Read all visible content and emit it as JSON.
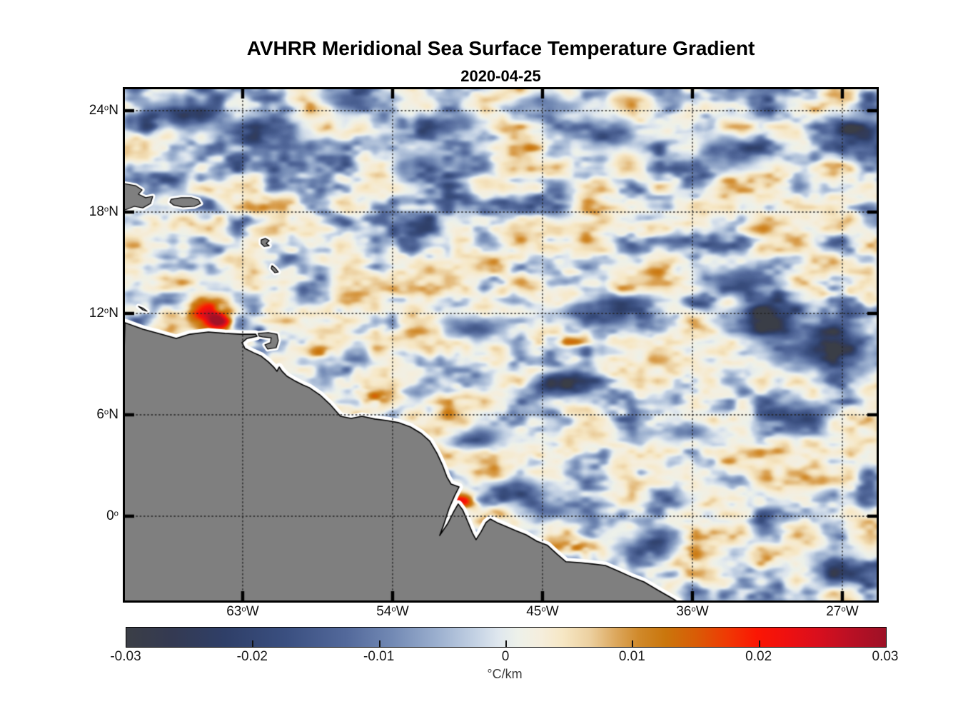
{
  "figure": {
    "title": "AVHRR Meridional Sea Surface Temperature Gradient",
    "subtitle": "2020-04-25"
  },
  "chart_data": {
    "type": "heatmap",
    "title": "AVHRR Meridional Sea Surface Temperature Gradient",
    "subtitle": "2020-04-25",
    "projection": {
      "lon_range": [
        -70.07,
        -24.94
      ],
      "lat_range": [
        -4.99,
        25.27
      ]
    },
    "x_axis": {
      "ticks": [
        {
          "lon": -63,
          "label": "63°W"
        },
        {
          "lon": -54,
          "label": "54°W"
        },
        {
          "lon": -45,
          "label": "45°W"
        },
        {
          "lon": -36,
          "label": "36°W"
        },
        {
          "lon": -27,
          "label": "27°W"
        }
      ]
    },
    "y_axis": {
      "ticks": [
        {
          "lat": 24,
          "label": "24°N"
        },
        {
          "lat": 18,
          "label": "18°N"
        },
        {
          "lat": 12,
          "label": "12°N"
        },
        {
          "lat": 6,
          "label": "6°N"
        },
        {
          "lat": 0,
          "label": "0°"
        }
      ]
    },
    "colorbar": {
      "min": -0.03,
      "max": 0.03,
      "tick_values": [
        -0.03,
        -0.02,
        -0.01,
        0,
        0.01,
        0.02,
        0.03
      ],
      "tick_labels": [
        "-0.03",
        "-0.02",
        "-0.01",
        "0",
        "0.01",
        "0.02",
        "0.03"
      ],
      "unit": "°C/km",
      "stops": [
        [
          0.0,
          "#3b3e46"
        ],
        [
          0.06,
          "#343a52"
        ],
        [
          0.13,
          "#2f3f68"
        ],
        [
          0.21,
          "#3a4f80"
        ],
        [
          0.29,
          "#53699b"
        ],
        [
          0.35,
          "#7289b4"
        ],
        [
          0.41,
          "#9cb0cf"
        ],
        [
          0.46,
          "#c4d2e4"
        ],
        [
          0.49,
          "#dfe7ee"
        ],
        [
          0.515,
          "#edf1ea"
        ],
        [
          0.545,
          "#f5eedd"
        ],
        [
          0.575,
          "#f6e7c4"
        ],
        [
          0.61,
          "#ecd0a0"
        ],
        [
          0.645,
          "#dca75c"
        ],
        [
          0.675,
          "#d0892a"
        ],
        [
          0.71,
          "#ca760c"
        ],
        [
          0.75,
          "#d95c06"
        ],
        [
          0.79,
          "#ef3a04"
        ],
        [
          0.83,
          "#fb1603"
        ],
        [
          0.87,
          "#ee1010"
        ],
        [
          0.91,
          "#d90f1d"
        ],
        [
          0.95,
          "#bc1024"
        ],
        [
          1.0,
          "#9d1126"
        ]
      ]
    },
    "grid_style": "dotted",
    "land_color": "#7f7f7f",
    "coast_outline_color": "#000000",
    "coastal_mask_color": "#ffffff",
    "field_background": 0.0017,
    "anomalies": [
      {
        "lon": -65.1,
        "lat": 12.15,
        "peak": 0.02,
        "sx": 1.1,
        "sy": 0.45
      },
      {
        "lon": -64.35,
        "lat": 11.45,
        "peak": 0.027,
        "sx": 0.55,
        "sy": 0.35
      },
      {
        "lon": -62.0,
        "lat": 10.72,
        "peak": -0.026,
        "sx": 0.24,
        "sy": 0.3
      },
      {
        "lon": -43.7,
        "lat": 10.35,
        "peak": 0.017,
        "sx": 1.2,
        "sy": 0.4
      },
      {
        "lon": -55.15,
        "lat": 7.1,
        "peak": 0.013,
        "sx": 0.8,
        "sy": 0.35
      },
      {
        "lon": -58.3,
        "lat": 9.7,
        "peak": 0.012,
        "sx": 0.5,
        "sy": 0.3
      },
      {
        "lon": -49.9,
        "lat": 0.9,
        "peak": 0.014,
        "sx": 0.7,
        "sy": 0.3
      },
      {
        "lon": -43.4,
        "lat": -1.85,
        "peak": 0.013,
        "sx": 1.0,
        "sy": 0.3
      },
      {
        "lon": -27.5,
        "lat": 13.0,
        "peak": 0.014,
        "sx": 0.7,
        "sy": 0.4
      },
      {
        "lon": -66.8,
        "lat": 23.6,
        "peak": -0.02,
        "sx": 1.3,
        "sy": 0.6
      },
      {
        "lon": -61.9,
        "lat": 22.9,
        "peak": -0.02,
        "sx": 1.8,
        "sy": 0.7
      },
      {
        "lon": -56.5,
        "lat": 24.6,
        "peak": -0.018,
        "sx": 1.2,
        "sy": 0.5
      },
      {
        "lon": -52.5,
        "lat": 20.8,
        "peak": -0.014,
        "sx": 1.4,
        "sy": 0.8
      },
      {
        "lon": -50.8,
        "lat": 23.2,
        "peak": -0.018,
        "sx": 1.5,
        "sy": 0.6
      },
      {
        "lon": -44.6,
        "lat": 24.3,
        "peak": -0.016,
        "sx": 1.3,
        "sy": 0.5
      },
      {
        "lon": -40.8,
        "lat": 22.6,
        "peak": -0.016,
        "sx": 1.5,
        "sy": 0.7
      },
      {
        "lon": -33.8,
        "lat": 21.5,
        "peak": -0.016,
        "sx": 1.6,
        "sy": 0.8
      },
      {
        "lon": -25.8,
        "lat": 22.5,
        "peak": -0.02,
        "sx": 1.4,
        "sy": 1.0
      },
      {
        "lon": -52.3,
        "lat": 17.2,
        "peak": -0.015,
        "sx": 1.0,
        "sy": 0.5
      },
      {
        "lon": -49.2,
        "lat": 11.2,
        "peak": -0.02,
        "sx": 1.3,
        "sy": 0.55
      },
      {
        "lon": -41.3,
        "lat": 11.9,
        "peak": -0.018,
        "sx": 1.8,
        "sy": 0.6
      },
      {
        "lon": -44.0,
        "lat": 7.6,
        "peak": -0.018,
        "sx": 1.6,
        "sy": 0.6
      },
      {
        "lon": -48.8,
        "lat": 4.6,
        "peak": -0.017,
        "sx": 1.2,
        "sy": 0.5
      },
      {
        "lon": -46.3,
        "lat": 1.5,
        "peak": -0.015,
        "sx": 1.4,
        "sy": 0.5
      },
      {
        "lon": -44.5,
        "lat": 0.3,
        "peak": -0.014,
        "sx": 1.2,
        "sy": 0.45
      },
      {
        "lon": -38.5,
        "lat": -1.6,
        "peak": -0.016,
        "sx": 1.4,
        "sy": 0.5
      },
      {
        "lon": -31.5,
        "lat": 11.6,
        "peak": -0.02,
        "sx": 1.5,
        "sy": 0.8
      },
      {
        "lon": -28.0,
        "lat": 9.8,
        "peak": -0.023,
        "sx": 2.2,
        "sy": 1.1
      },
      {
        "lon": -33.2,
        "lat": 13.9,
        "peak": -0.018,
        "sx": 1.6,
        "sy": 0.7
      },
      {
        "lon": -29.3,
        "lat": 5.9,
        "peak": -0.02,
        "sx": 1.5,
        "sy": 0.7
      },
      {
        "lon": -36.0,
        "lat": 5.0,
        "peak": -0.017,
        "sx": 1.1,
        "sy": 0.5
      },
      {
        "lon": -27.5,
        "lat": -3.2,
        "peak": -0.014,
        "sx": 1.6,
        "sy": 0.7
      }
    ],
    "geography": {
      "mainland": [
        [
          -70.07,
          11.45
        ],
        [
          -69.0,
          11.07
        ],
        [
          -68.06,
          10.82
        ],
        [
          -66.99,
          10.52
        ],
        [
          -66.17,
          10.77
        ],
        [
          -65.06,
          10.9
        ],
        [
          -64.07,
          10.82
        ],
        [
          -63.09,
          10.77
        ],
        [
          -62.23,
          10.77
        ],
        [
          -62.14,
          10.65
        ],
        [
          -62.74,
          10.52
        ],
        [
          -63.04,
          10.27
        ],
        [
          -62.87,
          9.93
        ],
        [
          -62.36,
          9.68
        ],
        [
          -61.89,
          9.47
        ],
        [
          -61.46,
          9.13
        ],
        [
          -61.11,
          8.79
        ],
        [
          -60.94,
          8.58
        ],
        [
          -60.81,
          8.83
        ],
        [
          -60.64,
          8.58
        ],
        [
          -60.34,
          8.28
        ],
        [
          -59.91,
          8.03
        ],
        [
          -59.4,
          7.77
        ],
        [
          -59.01,
          7.61
        ],
        [
          -58.37,
          7.18
        ],
        [
          -57.77,
          6.63
        ],
        [
          -57.13,
          5.91
        ],
        [
          -56.49,
          5.79
        ],
        [
          -55.84,
          5.91
        ],
        [
          -55.07,
          5.75
        ],
        [
          -54.34,
          5.66
        ],
        [
          -53.66,
          5.54
        ],
        [
          -52.93,
          5.28
        ],
        [
          -52.29,
          4.9
        ],
        [
          -51.77,
          4.44
        ],
        [
          -51.34,
          3.72
        ],
        [
          -51.0,
          3.0
        ],
        [
          -50.74,
          2.32
        ],
        [
          -50.49,
          1.9
        ],
        [
          -50.01,
          1.73
        ],
        [
          -50.27,
          1.23
        ],
        [
          -50.61,
          0.46
        ],
        [
          -50.96,
          -0.59
        ],
        [
          -51.17,
          -1.14
        ],
        [
          -50.7,
          -0.46
        ],
        [
          -50.31,
          0.3
        ],
        [
          -50.06,
          0.72
        ],
        [
          -49.8,
          0.38
        ],
        [
          -49.5,
          -0.3
        ],
        [
          -49.2,
          -1.01
        ],
        [
          -48.99,
          -1.39
        ],
        [
          -48.69,
          -0.93
        ],
        [
          -48.39,
          -0.38
        ],
        [
          -48.13,
          -0.17
        ],
        [
          -47.74,
          -0.38
        ],
        [
          -47.23,
          -0.59
        ],
        [
          -46.63,
          -0.85
        ],
        [
          -45.99,
          -1.1
        ],
        [
          -45.34,
          -1.48
        ],
        [
          -44.7,
          -1.73
        ],
        [
          -44.14,
          -2.24
        ],
        [
          -43.59,
          -2.7
        ],
        [
          -42.77,
          -2.75
        ],
        [
          -42.0,
          -2.83
        ],
        [
          -41.23,
          -2.92
        ],
        [
          -40.46,
          -3.25
        ],
        [
          -39.69,
          -3.59
        ],
        [
          -38.91,
          -3.89
        ],
        [
          -38.06,
          -4.39
        ],
        [
          -37.29,
          -4.82
        ],
        [
          -36.86,
          -5.07
        ],
        [
          -36.5,
          -5.6
        ],
        [
          -70.5,
          -5.6
        ]
      ],
      "islands": {
        "hispaniola": [
          [
            -70.4,
            19.73
          ],
          [
            -69.43,
            19.56
          ],
          [
            -69.04,
            19.31
          ],
          [
            -69.26,
            19.06
          ],
          [
            -68.83,
            18.85
          ],
          [
            -68.4,
            18.93
          ],
          [
            -68.53,
            18.51
          ],
          [
            -69.0,
            18.25
          ],
          [
            -69.51,
            18.34
          ],
          [
            -69.94,
            18.17
          ],
          [
            -70.4,
            18.04
          ]
        ],
        "puerto_rico": [
          [
            -67.29,
            18.76
          ],
          [
            -66.69,
            18.85
          ],
          [
            -66.09,
            18.85
          ],
          [
            -65.66,
            18.72
          ],
          [
            -65.53,
            18.51
          ],
          [
            -65.91,
            18.34
          ],
          [
            -66.6,
            18.3
          ],
          [
            -67.16,
            18.42
          ],
          [
            -67.37,
            18.59
          ]
        ],
        "curacao": [
          [
            -69.26,
            12.42
          ],
          [
            -68.96,
            12.3
          ],
          [
            -68.74,
            12.13
          ],
          [
            -69.0,
            12.21
          ]
        ],
        "guadeloupe": [
          [
            -61.89,
            16.35
          ],
          [
            -61.63,
            16.44
          ],
          [
            -61.41,
            16.31
          ],
          [
            -61.59,
            16.14
          ],
          [
            -61.41,
            16.01
          ],
          [
            -61.71,
            15.97
          ],
          [
            -61.89,
            16.14
          ]
        ],
        "martinique": [
          [
            -61.24,
            14.83
          ],
          [
            -61.03,
            14.66
          ],
          [
            -60.86,
            14.45
          ],
          [
            -61.07,
            14.41
          ],
          [
            -61.29,
            14.66
          ]
        ],
        "trinidad": [
          [
            -62.06,
            10.82
          ],
          [
            -61.46,
            10.86
          ],
          [
            -60.94,
            10.77
          ],
          [
            -60.86,
            10.39
          ],
          [
            -60.99,
            9.97
          ],
          [
            -61.5,
            9.89
          ],
          [
            -61.67,
            10.14
          ],
          [
            -61.33,
            10.27
          ],
          [
            -61.29,
            10.56
          ],
          [
            -61.8,
            10.61
          ],
          [
            -62.01,
            10.65
          ]
        ]
      }
    }
  }
}
